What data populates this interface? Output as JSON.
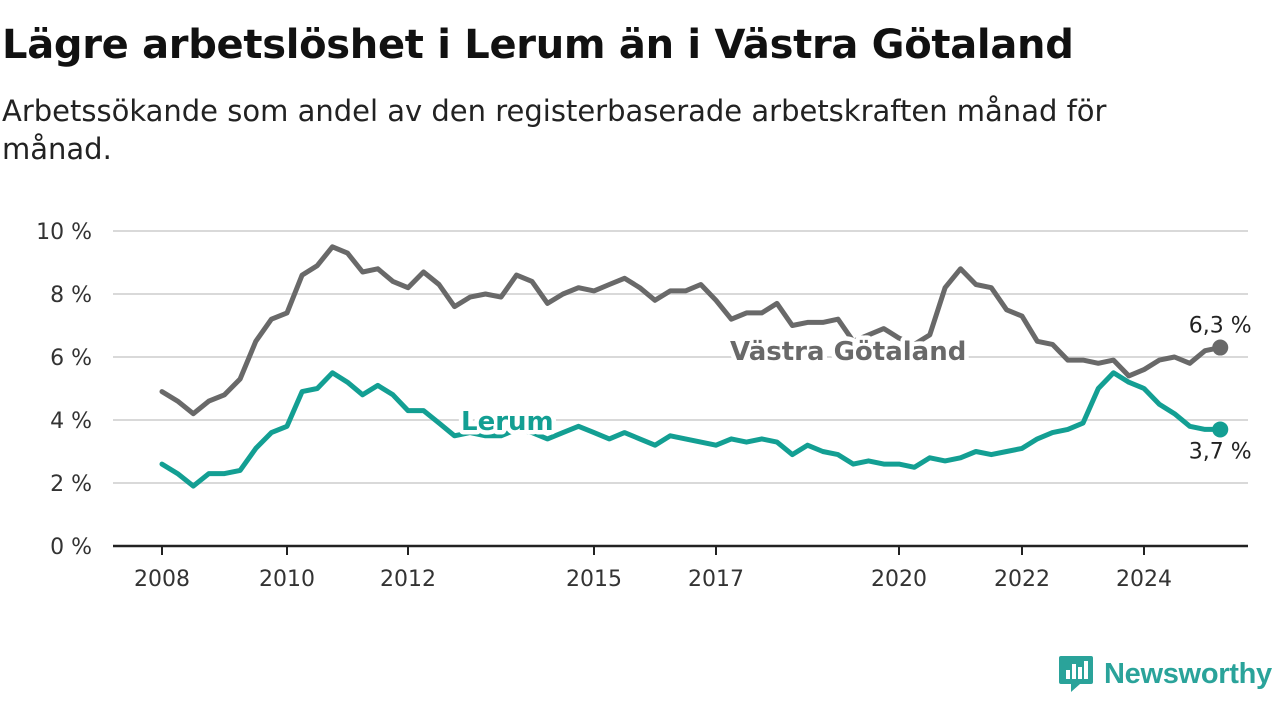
{
  "title": "Lägre arbetslöshet i Lerum än i Västra Götaland",
  "subtitle": "Arbetssökande som andel av den registerbaserade arbetskraften månad för månad.",
  "brand": "Newsworthy",
  "colors": {
    "lerum": "#139f93",
    "vastra_gotaland": "#696969",
    "grid": "#d9d9d9",
    "axis": "#333333",
    "brand": "#2aa39a"
  },
  "icons": {
    "brand": "newsworthy-logo-icon"
  },
  "chart_data": {
    "type": "line",
    "title": "",
    "xlabel": "",
    "ylabel": "",
    "ylim": [
      0,
      10
    ],
    "y_ticks": [
      0,
      2,
      4,
      6,
      8,
      10
    ],
    "y_tick_labels": [
      "0 %",
      "2 %",
      "4 %",
      "6 %",
      "8 %",
      "10 %"
    ],
    "x_ticks": [
      2008,
      2010,
      2012,
      2015,
      2017,
      2020,
      2022,
      2024
    ],
    "x_tick_labels": [
      "2008",
      "2010",
      "2012",
      "2015",
      "2017",
      "2020",
      "2022",
      "2024"
    ],
    "grid": true,
    "legend": "direct labels on lines",
    "series": [
      {
        "name": "Västra Götaland",
        "end_label": "6,3 %",
        "points": [
          [
            "2008-01",
            4.9
          ],
          [
            "2008-04",
            4.6
          ],
          [
            "2008-07",
            4.2
          ],
          [
            "2008-10",
            4.6
          ],
          [
            "2009-01",
            4.8
          ],
          [
            "2009-04",
            5.3
          ],
          [
            "2009-07",
            6.5
          ],
          [
            "2009-10",
            7.2
          ],
          [
            "2010-01",
            7.4
          ],
          [
            "2010-04",
            8.6
          ],
          [
            "2010-07",
            8.9
          ],
          [
            "2010-10",
            9.5
          ],
          [
            "2011-01",
            9.3
          ],
          [
            "2011-04",
            8.7
          ],
          [
            "2011-07",
            8.8
          ],
          [
            "2011-10",
            8.4
          ],
          [
            "2012-01",
            8.2
          ],
          [
            "2012-04",
            8.7
          ],
          [
            "2012-07",
            8.3
          ],
          [
            "2012-10",
            7.6
          ],
          [
            "2013-01",
            7.9
          ],
          [
            "2013-04",
            8.0
          ],
          [
            "2013-07",
            7.9
          ],
          [
            "2013-10",
            8.6
          ],
          [
            "2014-01",
            8.4
          ],
          [
            "2014-04",
            7.7
          ],
          [
            "2014-07",
            8.0
          ],
          [
            "2014-10",
            8.2
          ],
          [
            "2015-01",
            8.1
          ],
          [
            "2015-04",
            8.3
          ],
          [
            "2015-07",
            8.5
          ],
          [
            "2015-10",
            8.2
          ],
          [
            "2016-01",
            7.8
          ],
          [
            "2016-04",
            8.1
          ],
          [
            "2016-07",
            8.1
          ],
          [
            "2016-10",
            8.3
          ],
          [
            "2017-01",
            7.8
          ],
          [
            "2017-04",
            7.2
          ],
          [
            "2017-07",
            7.4
          ],
          [
            "2017-10",
            7.4
          ],
          [
            "2018-01",
            7.7
          ],
          [
            "2018-04",
            7.0
          ],
          [
            "2018-07",
            7.1
          ],
          [
            "2018-10",
            7.1
          ],
          [
            "2019-01",
            7.2
          ],
          [
            "2019-04",
            6.5
          ],
          [
            "2019-07",
            6.7
          ],
          [
            "2019-10",
            6.9
          ],
          [
            "2020-01",
            6.6
          ],
          [
            "2020-04",
            6.4
          ],
          [
            "2020-07",
            6.7
          ],
          [
            "2020-10",
            8.2
          ],
          [
            "2021-01",
            8.8
          ],
          [
            "2021-04",
            8.3
          ],
          [
            "2021-07",
            8.2
          ],
          [
            "2021-10",
            7.5
          ],
          [
            "2022-01",
            7.3
          ],
          [
            "2022-04",
            6.5
          ],
          [
            "2022-07",
            6.4
          ],
          [
            "2022-10",
            5.9
          ],
          [
            "2023-01",
            5.9
          ],
          [
            "2023-04",
            5.8
          ],
          [
            "2023-07",
            5.9
          ],
          [
            "2023-10",
            5.4
          ],
          [
            "2024-01",
            5.6
          ],
          [
            "2024-04",
            5.9
          ],
          [
            "2024-07",
            6.0
          ],
          [
            "2024-10",
            5.8
          ],
          [
            "2025-01",
            6.2
          ],
          [
            "2025-04",
            6.3
          ]
        ]
      },
      {
        "name": "Lerum",
        "end_label": "3,7 %",
        "points": [
          [
            "2008-01",
            2.6
          ],
          [
            "2008-04",
            2.3
          ],
          [
            "2008-07",
            1.9
          ],
          [
            "2008-10",
            2.3
          ],
          [
            "2009-01",
            2.3
          ],
          [
            "2009-04",
            2.4
          ],
          [
            "2009-07",
            3.1
          ],
          [
            "2009-10",
            3.6
          ],
          [
            "2010-01",
            3.8
          ],
          [
            "2010-04",
            4.9
          ],
          [
            "2010-07",
            5.0
          ],
          [
            "2010-10",
            5.5
          ],
          [
            "2011-01",
            5.2
          ],
          [
            "2011-04",
            4.8
          ],
          [
            "2011-07",
            5.1
          ],
          [
            "2011-10",
            4.8
          ],
          [
            "2012-01",
            4.3
          ],
          [
            "2012-04",
            4.3
          ],
          [
            "2012-07",
            3.9
          ],
          [
            "2012-10",
            3.5
          ],
          [
            "2013-01",
            3.6
          ],
          [
            "2013-04",
            3.5
          ],
          [
            "2013-07",
            3.5
          ],
          [
            "2013-10",
            3.7
          ],
          [
            "2014-01",
            3.6
          ],
          [
            "2014-04",
            3.4
          ],
          [
            "2014-07",
            3.6
          ],
          [
            "2014-10",
            3.8
          ],
          [
            "2015-01",
            3.6
          ],
          [
            "2015-04",
            3.4
          ],
          [
            "2015-07",
            3.6
          ],
          [
            "2015-10",
            3.4
          ],
          [
            "2016-01",
            3.2
          ],
          [
            "2016-04",
            3.5
          ],
          [
            "2016-07",
            3.4
          ],
          [
            "2016-10",
            3.3
          ],
          [
            "2017-01",
            3.2
          ],
          [
            "2017-04",
            3.4
          ],
          [
            "2017-07",
            3.3
          ],
          [
            "2017-10",
            3.4
          ],
          [
            "2018-01",
            3.3
          ],
          [
            "2018-04",
            2.9
          ],
          [
            "2018-07",
            3.2
          ],
          [
            "2018-10",
            3.0
          ],
          [
            "2019-01",
            2.9
          ],
          [
            "2019-04",
            2.6
          ],
          [
            "2019-07",
            2.7
          ],
          [
            "2019-10",
            2.6
          ],
          [
            "2020-01",
            2.6
          ],
          [
            "2020-04",
            2.5
          ],
          [
            "2020-07",
            2.8
          ],
          [
            "2020-10",
            2.7
          ],
          [
            "2021-01",
            2.8
          ],
          [
            "2021-04",
            3.0
          ],
          [
            "2021-07",
            2.9
          ],
          [
            "2021-10",
            3.0
          ],
          [
            "2022-01",
            3.1
          ],
          [
            "2022-04",
            3.4
          ],
          [
            "2022-07",
            3.6
          ],
          [
            "2022-10",
            3.7
          ],
          [
            "2023-01",
            3.9
          ],
          [
            "2023-04",
            5.0
          ],
          [
            "2023-07",
            5.5
          ],
          [
            "2023-10",
            5.2
          ],
          [
            "2024-01",
            5.0
          ],
          [
            "2024-04",
            4.5
          ],
          [
            "2024-07",
            4.2
          ],
          [
            "2024-10",
            3.8
          ],
          [
            "2025-01",
            3.7
          ],
          [
            "2025-04",
            3.7
          ]
        ]
      }
    ]
  }
}
